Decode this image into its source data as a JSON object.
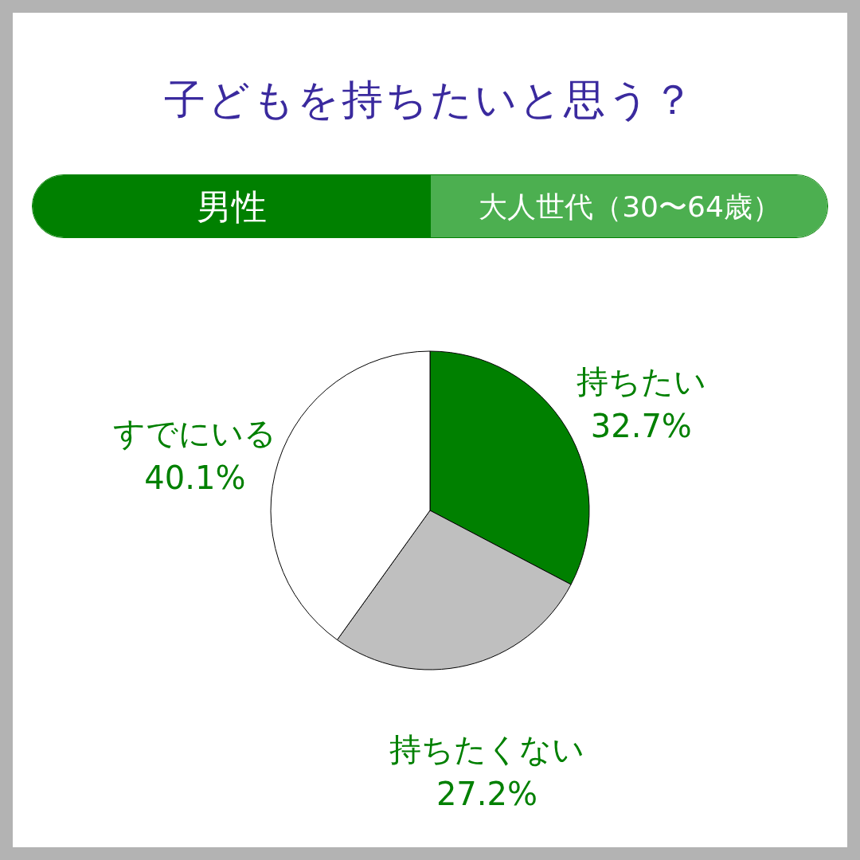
{
  "chart_data": {
    "type": "pie",
    "title": "子どもを持ちたいと思う？",
    "subtitle": "男性",
    "annotations": [
      "大人世代（30〜64歳）"
    ],
    "categories": [
      "持ちたい",
      "持ちたくない",
      "すでにいる"
    ],
    "values": [
      32.7,
      27.2,
      40.1
    ],
    "colors": [
      "#008000",
      "#bfbfbf",
      "#ffffff"
    ],
    "value_labels": [
      "32.7%",
      "27.2%",
      "40.1%"
    ],
    "legend": false
  }
}
